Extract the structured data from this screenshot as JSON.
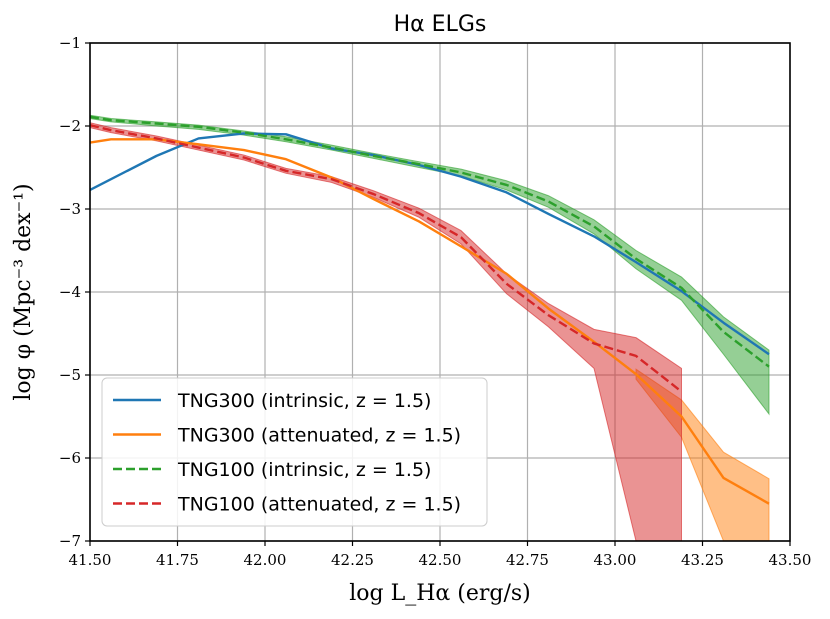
{
  "chart_data": {
    "type": "line",
    "title": "Hα ELGs",
    "xlabel": "log L_Hα (erg/s)",
    "ylabel": "log φ (Mpc⁻³ dex⁻¹)",
    "xlim": [
      41.5,
      43.5
    ],
    "ylim": [
      -7,
      -1
    ],
    "grid": true,
    "legend_position": "lower-left",
    "xticks": [
      41.5,
      41.75,
      42.0,
      42.25,
      42.5,
      42.75,
      43.0,
      43.25,
      43.5
    ],
    "xtick_labels": [
      "41.50",
      "41.75",
      "42.00",
      "42.25",
      "42.50",
      "42.75",
      "43.00",
      "43.25",
      "43.50"
    ],
    "yticks": [
      -7,
      -6,
      -5,
      -4,
      -3,
      -2,
      -1
    ],
    "ytick_labels": [
      "−7",
      "−6",
      "−5",
      "−4",
      "−3",
      "−2",
      "−1"
    ],
    "series": [
      {
        "name": "TNG300 (intrinsic, z = 1.5)",
        "color": "#1f77b4",
        "style": "solid",
        "x": [
          41.5,
          41.69,
          41.81,
          41.94,
          42.06,
          42.19,
          42.31,
          42.44,
          42.56,
          42.69,
          42.81,
          42.94,
          43.06,
          43.19,
          43.31,
          43.44
        ],
        "y": [
          -2.77,
          -2.36,
          -2.15,
          -2.09,
          -2.1,
          -2.27,
          -2.35,
          -2.47,
          -2.61,
          -2.8,
          -3.06,
          -3.33,
          -3.64,
          -3.99,
          -4.37,
          -4.75
        ]
      },
      {
        "name": "TNG300 (attenuated, z = 1.5)",
        "color": "#ff7f0e",
        "style": "solid",
        "x": [
          41.5,
          41.56,
          41.69,
          41.81,
          41.94,
          42.06,
          42.19,
          42.31,
          42.44,
          42.56,
          42.69,
          42.81,
          42.94,
          43.06,
          43.19,
          43.31,
          43.44
        ],
        "y": [
          -2.2,
          -2.16,
          -2.16,
          -2.22,
          -2.29,
          -2.4,
          -2.62,
          -2.88,
          -3.15,
          -3.45,
          -3.78,
          -4.2,
          -4.6,
          -4.99,
          -5.5,
          -6.24,
          -6.55
        ],
        "band": {
          "x": [
            43.06,
            43.19,
            43.31,
            43.44
          ],
          "lower": [
            -5.05,
            -5.75,
            -7.0,
            -7.0
          ],
          "upper": [
            -4.93,
            -5.3,
            -5.93,
            -6.25
          ]
        }
      },
      {
        "name": "TNG100 (intrinsic, z = 1.5)",
        "color": "#2ca02c",
        "style": "dashed",
        "x": [
          41.5,
          41.56,
          41.69,
          41.81,
          41.94,
          42.06,
          42.19,
          42.31,
          42.44,
          42.56,
          42.69,
          42.81,
          42.94,
          43.06,
          43.19,
          43.31,
          43.44
        ],
        "y": [
          -1.89,
          -1.93,
          -1.97,
          -2.01,
          -2.08,
          -2.16,
          -2.26,
          -2.36,
          -2.46,
          -2.56,
          -2.71,
          -2.91,
          -3.21,
          -3.6,
          -3.95,
          -4.48,
          -4.9
        ],
        "band": {
          "x": [
            41.5,
            41.56,
            41.69,
            41.81,
            41.94,
            42.06,
            42.19,
            42.31,
            42.44,
            42.56,
            42.69,
            42.81,
            42.94,
            43.06,
            43.19,
            43.31,
            43.44
          ],
          "lower": [
            -1.91,
            -1.95,
            -2.0,
            -2.04,
            -2.11,
            -2.19,
            -2.29,
            -2.39,
            -2.5,
            -2.6,
            -2.77,
            -2.98,
            -3.3,
            -3.72,
            -4.1,
            -4.75,
            -5.47
          ],
          "upper": [
            -1.87,
            -1.91,
            -1.95,
            -1.99,
            -2.06,
            -2.13,
            -2.23,
            -2.33,
            -2.43,
            -2.52,
            -2.66,
            -2.84,
            -3.13,
            -3.5,
            -3.82,
            -4.3,
            -4.7
          ]
        }
      },
      {
        "name": "TNG100 (attenuated, z = 1.5)",
        "color": "#d62728",
        "style": "dashed",
        "x": [
          41.5,
          41.56,
          41.69,
          41.81,
          41.94,
          42.06,
          42.19,
          42.31,
          42.44,
          42.56,
          42.69,
          42.81,
          42.94,
          43.06,
          43.19
        ],
        "y": [
          -1.99,
          -2.05,
          -2.15,
          -2.26,
          -2.38,
          -2.54,
          -2.64,
          -2.82,
          -3.05,
          -3.34,
          -3.9,
          -4.28,
          -4.62,
          -4.77,
          -5.2
        ],
        "band": {
          "x": [
            41.5,
            41.56,
            41.69,
            41.81,
            41.94,
            42.06,
            42.19,
            42.31,
            42.44,
            42.56,
            42.69,
            42.81,
            42.94,
            43.06,
            43.19
          ],
          "lower": [
            -2.02,
            -2.08,
            -2.18,
            -2.29,
            -2.41,
            -2.57,
            -2.68,
            -2.86,
            -3.1,
            -3.42,
            -4.02,
            -4.42,
            -4.92,
            -7.0,
            -7.0
          ],
          "upper": [
            -1.96,
            -2.02,
            -2.12,
            -2.23,
            -2.35,
            -2.51,
            -2.61,
            -2.78,
            -2.99,
            -3.26,
            -3.78,
            -4.14,
            -4.45,
            -4.55,
            -4.92
          ]
        }
      }
    ]
  }
}
